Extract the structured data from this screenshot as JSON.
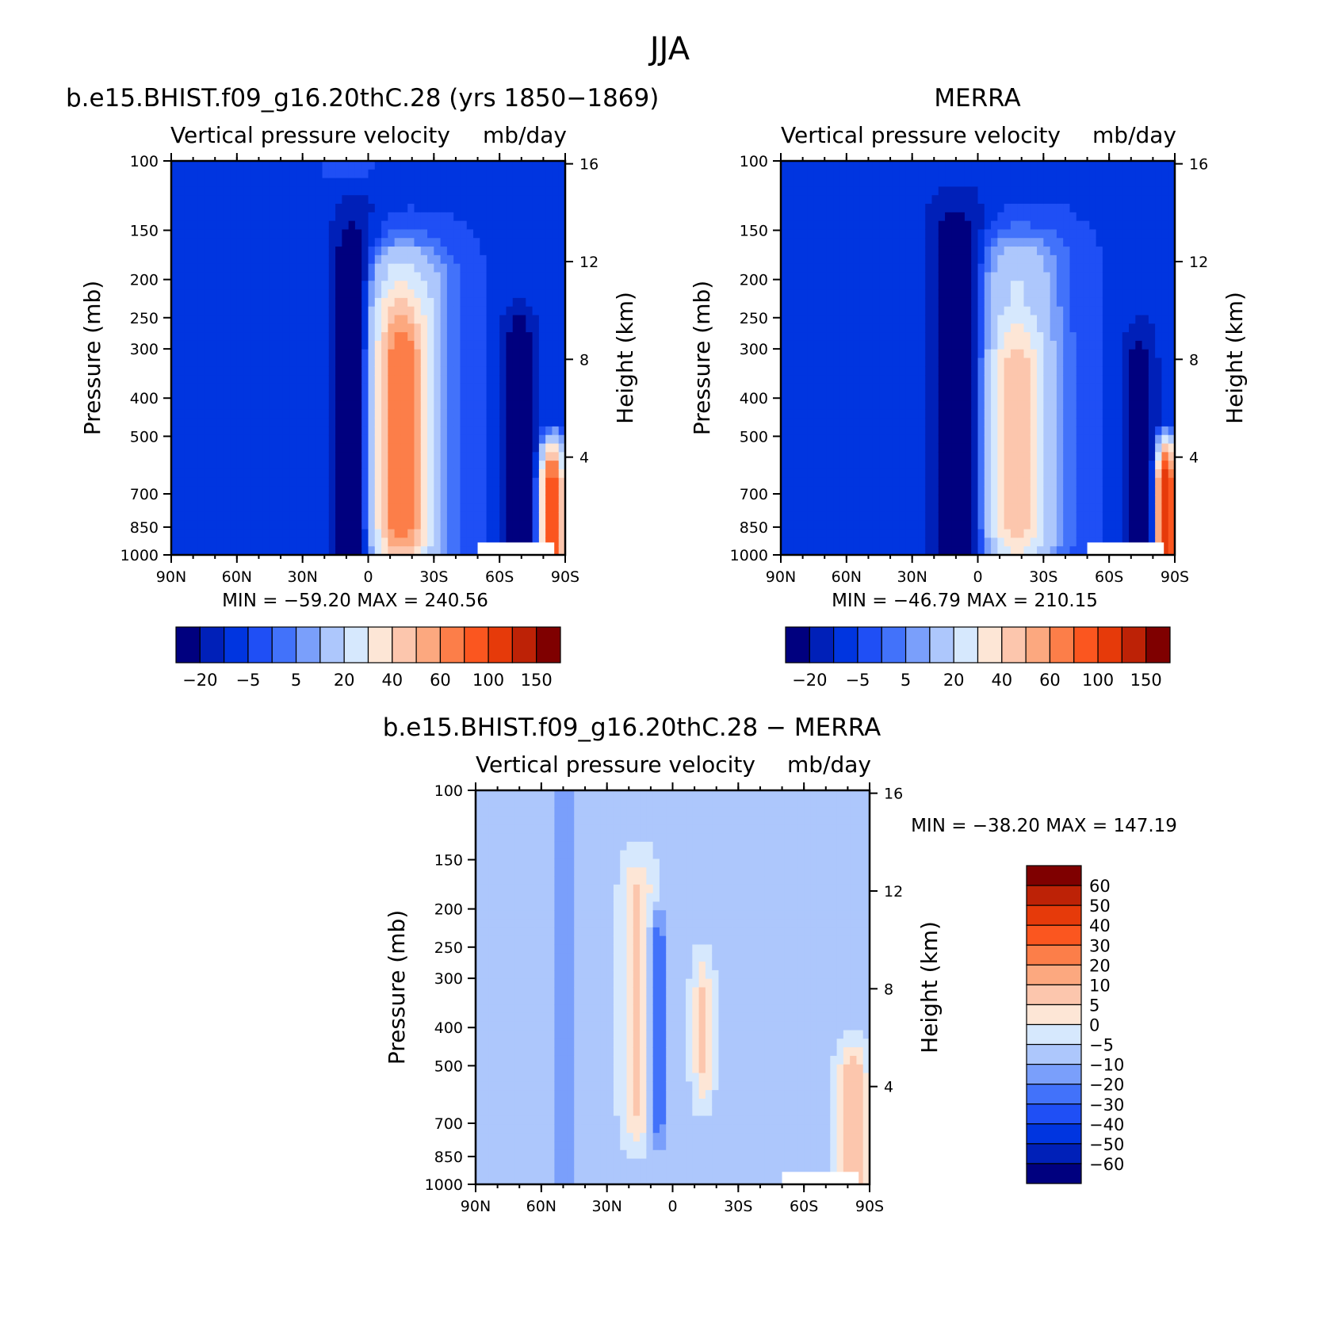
{
  "figure": {
    "title": "JJA"
  },
  "chart_data": [
    {
      "type": "heatmap",
      "panel": "model",
      "title": "b.e15.BHIST.f09_g16.20thC.28 (yrs 1850-1869)",
      "subtitle_left": "Vertical pressure velocity",
      "subtitle_right": "mb/day",
      "ylabel": "Pressure (mb)",
      "y2label": "Height (km)",
      "min_label": "MIN = -59.20",
      "max_label": "MAX = 240.56",
      "min": -59.2,
      "max": 240.56,
      "x_ticks": [
        "90N",
        "60N",
        "30N",
        "0",
        "30S",
        "60S",
        "90S"
      ],
      "y_ticks": [
        "100",
        "150",
        "200",
        "250",
        "300",
        "400",
        "500",
        "700",
        "850",
        "1000"
      ],
      "y2_ticks": [
        "16",
        "12",
        "8",
        "4"
      ],
      "xlim": [
        90,
        -90
      ],
      "ylim": [
        1000,
        100
      ],
      "y_scale": "log",
      "colorbar_orientation": "horizontal",
      "colorbar_levels": [
        -40,
        -20,
        -10,
        -5,
        0,
        5,
        10,
        20,
        30,
        40,
        50,
        60,
        80,
        100,
        120,
        150
      ],
      "colorbar_labels": [
        "-20",
        "-5",
        "5",
        "20",
        "40",
        "60",
        "100",
        "150"
      ],
      "colors": [
        "#00007f",
        "#0020b8",
        "#0035e0",
        "#1f4ff5",
        "#4272fa",
        "#7a9ffb",
        "#adc7fc",
        "#d6e8fd",
        "#fde6d6",
        "#fcc6ad",
        "#fca87f",
        "#fc7e49",
        "#fb561f",
        "#e63a0a",
        "#bd2206",
        "#7f0000"
      ],
      "features": [
        {
          "lat": 8,
          "width": 7,
          "pmin": 190,
          "pmax": 1000,
          "value": -40
        },
        {
          "lat": 6,
          "width": 14,
          "pmin": 150,
          "pmax": 1000,
          "value": -20
        },
        {
          "lat": -15,
          "width": 12,
          "pmin": 300,
          "pmax": 850,
          "value": 30
        },
        {
          "lat": -15,
          "width": 20,
          "pmin": 220,
          "pmax": 900,
          "value": 20
        },
        {
          "lat": -15,
          "width": 27,
          "pmin": 180,
          "pmax": 950,
          "value": 10
        },
        {
          "lat": -69,
          "width": 8,
          "pmin": 300,
          "pmax": 1000,
          "value": -40
        },
        {
          "lat": -84,
          "width": 6,
          "pmin": 650,
          "pmax": 1000,
          "value": 100
        }
      ]
    },
    {
      "type": "heatmap",
      "panel": "obs",
      "title": "MERRA",
      "subtitle_left": "Vertical pressure velocity",
      "subtitle_right": "mb/day",
      "ylabel": "Pressure (mb)",
      "y2label": "Height (km)",
      "min_label": "MIN = -46.79",
      "max_label": "MAX = 210.15",
      "min": -46.79,
      "max": 210.15,
      "x_ticks": [
        "90N",
        "60N",
        "30N",
        "0",
        "30S",
        "60S",
        "90S"
      ],
      "y_ticks": [
        "100",
        "150",
        "200",
        "250",
        "300",
        "400",
        "500",
        "700",
        "850",
        "1000"
      ],
      "y2_ticks": [
        "16",
        "12",
        "8",
        "4"
      ],
      "xlim": [
        90,
        -90
      ],
      "ylim": [
        1000,
        100
      ],
      "y_scale": "log",
      "colorbar_orientation": "horizontal",
      "colorbar_levels": [
        -40,
        -20,
        -10,
        -5,
        0,
        5,
        10,
        20,
        30,
        40,
        50,
        60,
        80,
        100,
        120,
        150
      ],
      "colorbar_labels": [
        "-20",
        "-5",
        "5",
        "20",
        "40",
        "60",
        "100",
        "150"
      ],
      "colors": [
        "#00007f",
        "#0020b8",
        "#0035e0",
        "#1f4ff5",
        "#4272fa",
        "#7a9ffb",
        "#adc7fc",
        "#d6e8fd",
        "#fde6d6",
        "#fcc6ad",
        "#fca87f",
        "#fc7e49",
        "#fb561f",
        "#e63a0a",
        "#bd2206",
        "#7f0000"
      ],
      "features": [
        {
          "lat": 10,
          "width": 9,
          "pmin": 180,
          "pmax": 1000,
          "value": -40
        },
        {
          "lat": 9,
          "width": 17,
          "pmin": 140,
          "pmax": 1000,
          "value": -20
        },
        {
          "lat": -18,
          "width": 13,
          "pmin": 320,
          "pmax": 850,
          "value": 20
        },
        {
          "lat": -18,
          "width": 22,
          "pmin": 200,
          "pmax": 930,
          "value": 10
        },
        {
          "lat": -18,
          "width": 28,
          "pmin": 170,
          "pmax": 960,
          "value": 5
        },
        {
          "lat": -74,
          "width": 8,
          "pmin": 330,
          "pmax": 1000,
          "value": -30
        },
        {
          "lat": -86,
          "width": 5,
          "pmin": 650,
          "pmax": 1000,
          "value": 120
        }
      ]
    },
    {
      "type": "heatmap",
      "panel": "difference",
      "title": "b.e15.BHIST.f09_g16.20thC.28 - MERRA",
      "subtitle_left": "Vertical pressure velocity",
      "subtitle_right": "mb/day",
      "ylabel": "Pressure (mb)",
      "y2label": "Height (km)",
      "min_label": "MIN = -38.20",
      "max_label": "MAX = 147.19",
      "min": -38.2,
      "max": 147.19,
      "x_ticks": [
        "90N",
        "60N",
        "30N",
        "0",
        "30S",
        "60S",
        "90S"
      ],
      "y_ticks": [
        "100",
        "150",
        "200",
        "250",
        "300",
        "400",
        "500",
        "700",
        "850",
        "1000"
      ],
      "y2_ticks": [
        "16",
        "12",
        "8",
        "4"
      ],
      "xlim": [
        90,
        -90
      ],
      "ylim": [
        1000,
        100
      ],
      "y_scale": "log",
      "colorbar_orientation": "vertical",
      "colorbar_levels": [
        -60,
        -50,
        -40,
        -30,
        -20,
        -10,
        -5,
        0,
        5,
        10,
        20,
        30,
        40,
        50,
        60
      ],
      "colorbar_labels": [
        "60",
        "50",
        "40",
        "30",
        "20",
        "10",
        "5",
        "0",
        "-5",
        "-10",
        "-20",
        "-30",
        "-40",
        "-50",
        "-60"
      ],
      "colors": [
        "#00007f",
        "#0020b8",
        "#0035e0",
        "#1f4ff5",
        "#4272fa",
        "#7a9ffb",
        "#adc7fc",
        "#d6e8fd",
        "#fde6d6",
        "#fcc6ad",
        "#fca87f",
        "#fc7e49",
        "#fb561f",
        "#e63a0a",
        "#bd2206",
        "#7f0000"
      ],
      "features": [
        {
          "lat": 16,
          "width": 9,
          "pmin": 180,
          "pmax": 650,
          "value": 10
        },
        {
          "lat": 7,
          "width": 5,
          "pmin": 250,
          "pmax": 650,
          "value": -20
        },
        {
          "lat": -14,
          "width": 6,
          "pmin": 320,
          "pmax": 520,
          "value": 10
        },
        {
          "lat": -82,
          "width": 8,
          "pmin": 550,
          "pmax": 1000,
          "value": 20
        }
      ]
    }
  ]
}
